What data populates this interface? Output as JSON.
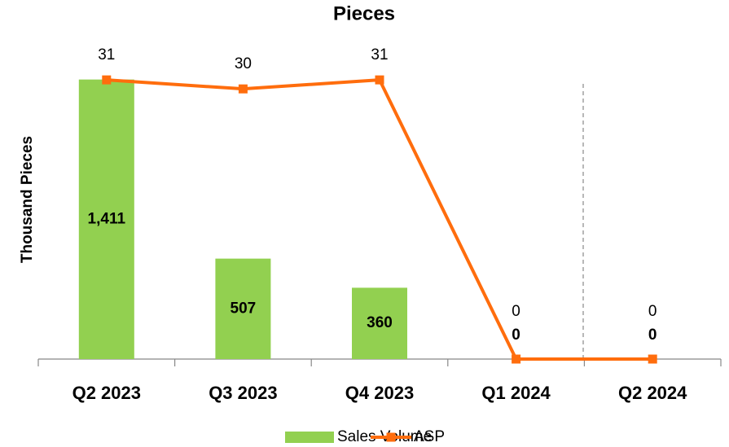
{
  "chart_data": {
    "type": "combo",
    "title": "Pieces",
    "y_label": "Thousand Pieces",
    "categories": [
      "Q2 2023",
      "Q3 2023",
      "Q4 2023",
      "Q1 2024",
      "Q2 2024"
    ],
    "series": [
      {
        "name": "Sales Volume",
        "type": "bar",
        "color": "#92d050",
        "values": [
          1411,
          507,
          360,
          0,
          0
        ],
        "value_labels": [
          "1,411",
          "507",
          "360",
          "0",
          "0"
        ]
      },
      {
        "name": "ASP",
        "type": "line",
        "color": "#ff6d0d",
        "axis": "y2",
        "values": [
          31,
          30,
          31,
          0,
          0
        ]
      }
    ],
    "ylim": [
      0,
      1500
    ],
    "y2lim": [
      0,
      33
    ]
  }
}
